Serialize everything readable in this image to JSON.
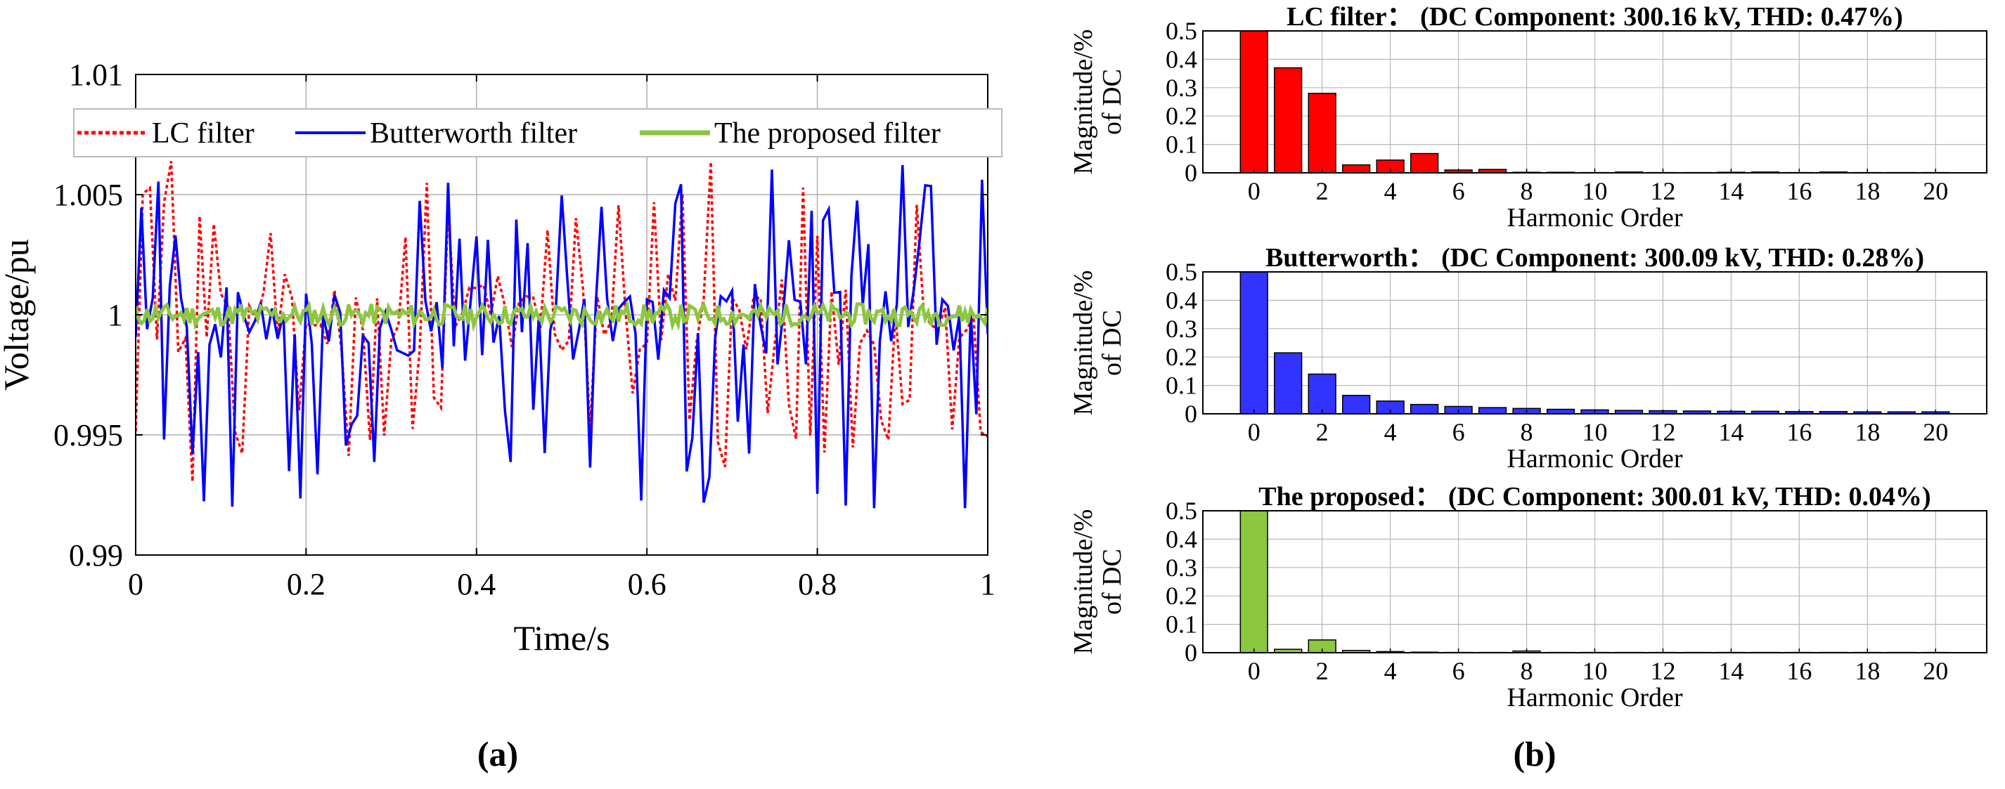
{
  "panel_a": {
    "caption": "(a)",
    "chart_data": {
      "type": "line",
      "xlabel": "Time/s",
      "ylabel": "Voltage/pu",
      "xlim": [
        0,
        1
      ],
      "ylim": [
        0.99,
        1.01
      ],
      "xticks": [
        0,
        0.2,
        0.4,
        0.6,
        0.8,
        1
      ],
      "xtick_labels": [
        "0",
        "0.2",
        "0.4",
        "0.6",
        "0.8",
        "1"
      ],
      "yticks": [
        0.99,
        0.995,
        1,
        1.005,
        1.01
      ],
      "ytick_labels": [
        "0.99",
        "0.995",
        "1",
        "1.005",
        "1.01"
      ],
      "grid": true,
      "legend_position": "top",
      "series": [
        {
          "name": "LC filter",
          "color": "#ff0000",
          "style": "dotted",
          "samples": 120,
          "min": 0.993,
          "max": 1.0065,
          "mean": 1.0,
          "seed": 7
        },
        {
          "name": "Butterworth filter",
          "color": "#0000ff",
          "style": "solid",
          "samples": 150,
          "min": 0.9917,
          "max": 1.0065,
          "mean": 1.0,
          "seed": 3
        },
        {
          "name": "The proposed filter",
          "color": "#8dc63f",
          "style": "solid",
          "samples": 300,
          "min": 0.9996,
          "max": 1.0005,
          "mean": 1.0,
          "seed": 11
        }
      ]
    }
  },
  "panel_b": {
    "caption": "(b)",
    "chart_data": [
      {
        "type": "bar",
        "title": "LC filter：  (DC Component: 300.16 kV, THD: 0.47%)",
        "xlabel": "Harmonic Order",
        "ylabel_lines": [
          "Magnitude/%",
          "of DC"
        ],
        "color": "#ff0000",
        "ylim": [
          0,
          0.5
        ],
        "yticks": [
          0,
          0.1,
          0.2,
          0.3,
          0.4,
          0.5
        ],
        "ytick_labels": [
          "0",
          "0.1",
          "0.2",
          "0.3",
          "0.4",
          "0.5"
        ],
        "xticks": [
          0,
          2,
          4,
          6,
          8,
          10,
          12,
          14,
          16,
          18,
          20
        ],
        "xtick_labels": [
          "0",
          "2",
          "4",
          "6",
          "8",
          "10",
          "12",
          "14",
          "16",
          "18",
          "20"
        ],
        "categories": [
          0,
          1,
          2,
          3,
          4,
          5,
          6,
          7,
          8,
          9,
          10,
          11,
          12,
          13,
          14,
          15,
          16,
          17,
          18,
          19,
          20
        ],
        "values": [
          0.5,
          0.37,
          0.28,
          0.028,
          0.045,
          0.068,
          0.01,
          0.012,
          0.002,
          0.002,
          0.001,
          0.003,
          0.001,
          0.001,
          0.002,
          0.003,
          0.001,
          0.003,
          0.001,
          0.001,
          0.001
        ]
      },
      {
        "type": "bar",
        "title": "Butterworth：  (DC Component: 300.09 kV, THD: 0.28%)",
        "xlabel": "Harmonic Order",
        "ylabel_lines": [
          "Magnitude/%",
          "of DC"
        ],
        "color": "#3333ff",
        "ylim": [
          0,
          0.5
        ],
        "yticks": [
          0,
          0.1,
          0.2,
          0.3,
          0.4,
          0.5
        ],
        "ytick_labels": [
          "0",
          "0.1",
          "0.2",
          "0.3",
          "0.4",
          "0.5"
        ],
        "xticks": [
          0,
          2,
          4,
          6,
          8,
          10,
          12,
          14,
          16,
          18,
          20
        ],
        "xtick_labels": [
          "0",
          "2",
          "4",
          "6",
          "8",
          "10",
          "12",
          "14",
          "16",
          "18",
          "20"
        ],
        "categories": [
          0,
          1,
          2,
          3,
          4,
          5,
          6,
          7,
          8,
          9,
          10,
          11,
          12,
          13,
          14,
          15,
          16,
          17,
          18,
          19,
          20
        ],
        "values": [
          0.5,
          0.215,
          0.14,
          0.065,
          0.045,
          0.033,
          0.026,
          0.022,
          0.019,
          0.016,
          0.014,
          0.012,
          0.011,
          0.01,
          0.009,
          0.009,
          0.008,
          0.008,
          0.007,
          0.007,
          0.007
        ]
      },
      {
        "type": "bar",
        "title": "The proposed：  (DC Component: 300.01 kV, THD: 0.04%)",
        "xlabel": "Harmonic Order",
        "ylabel_lines": [
          "Magnitude/%",
          "of DC"
        ],
        "color": "#8dc63f",
        "ylim": [
          0,
          0.5
        ],
        "yticks": [
          0,
          0.1,
          0.2,
          0.3,
          0.4,
          0.5
        ],
        "ytick_labels": [
          "0",
          "0.1",
          "0.2",
          "0.3",
          "0.4",
          "0.5"
        ],
        "xticks": [
          0,
          2,
          4,
          6,
          8,
          10,
          12,
          14,
          16,
          18,
          20
        ],
        "xtick_labels": [
          "0",
          "2",
          "4",
          "6",
          "8",
          "10",
          "12",
          "14",
          "16",
          "18",
          "20"
        ],
        "categories": [
          0,
          1,
          2,
          3,
          4,
          5,
          6,
          7,
          8,
          9,
          10,
          11,
          12,
          13,
          14,
          15,
          16,
          17,
          18,
          19,
          20
        ],
        "values": [
          0.5,
          0.012,
          0.045,
          0.008,
          0.004,
          0.002,
          0.001,
          0.001,
          0.006,
          0.001,
          0.001,
          0.001,
          0.001,
          0.001,
          0.001,
          0.001,
          0.001,
          0.001,
          0.001,
          0.001,
          0.001
        ]
      }
    ]
  }
}
